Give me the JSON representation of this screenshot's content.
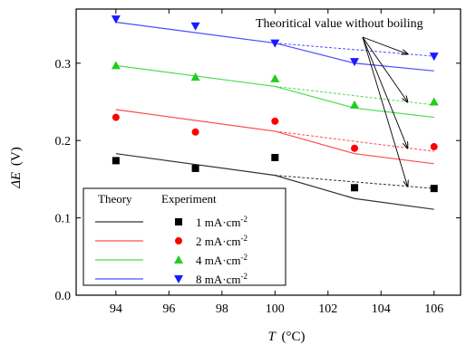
{
  "chart_data": {
    "type": "line",
    "xlabel": "T (°C)",
    "xlabel_var": "T",
    "xlabel_unit": "(°C)",
    "ylabel": "ΔE (V)",
    "ylabel_var": "ΔE",
    "ylabel_unit": "(V)",
    "xlim": [
      92.5,
      107
    ],
    "ylim": [
      0,
      0.37
    ],
    "x_ticks": [
      94,
      96,
      98,
      100,
      102,
      104,
      106
    ],
    "y_ticks": [
      0.0,
      0.1,
      0.2,
      0.3
    ],
    "y_tick_labels": [
      "0.0",
      "0.1",
      "0.2",
      "0.3"
    ],
    "grid": false,
    "legend_position": "bottom-left",
    "legend": {
      "theory_header": "Theory",
      "experiment_header": "Experiment"
    },
    "annotation": "Theoritical value without boiling",
    "series": [
      {
        "name": "1 mA·cm-2",
        "label_main": "1 mA·cm",
        "label_sup": "-2",
        "color": "#333333",
        "marker_color": "#000000",
        "marker": "square",
        "theory": {
          "x": [
            94,
            100,
            103,
            106
          ],
          "y": [
            0.183,
            0.155,
            0.125,
            0.111
          ]
        },
        "no_boiling": {
          "x": [
            100,
            106
          ],
          "y": [
            0.155,
            0.138
          ]
        },
        "experiment": {
          "x": [
            94,
            97,
            100,
            103,
            106
          ],
          "y": [
            0.174,
            0.164,
            0.178,
            0.139,
            0.138
          ]
        }
      },
      {
        "name": "2 mA·cm-2",
        "label_main": "2 mA·cm",
        "label_sup": "-2",
        "color": "#ff4d4d",
        "marker_color": "#ff0000",
        "marker": "circle",
        "theory": {
          "x": [
            94,
            100,
            103,
            106
          ],
          "y": [
            0.24,
            0.212,
            0.183,
            0.17
          ]
        },
        "no_boiling": {
          "x": [
            100,
            106
          ],
          "y": [
            0.212,
            0.186
          ]
        },
        "experiment": {
          "x": [
            94,
            97,
            100,
            103,
            106
          ],
          "y": [
            0.23,
            0.211,
            0.225,
            0.19,
            0.192
          ]
        }
      },
      {
        "name": "4 mA·cm-2",
        "label_main": "4 mA·cm",
        "label_sup": "-2",
        "color": "#4ddb4d",
        "marker_color": "#22cc22",
        "marker": "triangle-up",
        "theory": {
          "x": [
            94,
            100,
            103,
            106
          ],
          "y": [
            0.297,
            0.27,
            0.242,
            0.23
          ]
        },
        "no_boiling": {
          "x": [
            100,
            106
          ],
          "y": [
            0.27,
            0.246
          ]
        },
        "experiment": {
          "x": [
            94,
            97,
            100,
            103,
            106
          ],
          "y": [
            0.297,
            0.282,
            0.28,
            0.246,
            0.25
          ]
        }
      },
      {
        "name": "8 mA·cm-2",
        "label_main": "8 mA·cm",
        "label_sup": "-2",
        "color": "#4d4dff",
        "marker_color": "#1a1aff",
        "marker": "triangle-down",
        "theory": {
          "x": [
            94,
            100,
            103,
            106
          ],
          "y": [
            0.353,
            0.326,
            0.3,
            0.29
          ]
        },
        "no_boiling": {
          "x": [
            100,
            106
          ],
          "y": [
            0.326,
            0.309
          ]
        },
        "experiment": {
          "x": [
            94,
            97,
            100,
            103,
            106
          ],
          "y": [
            0.357,
            0.348,
            0.326,
            0.302,
            0.309
          ]
        }
      }
    ]
  }
}
